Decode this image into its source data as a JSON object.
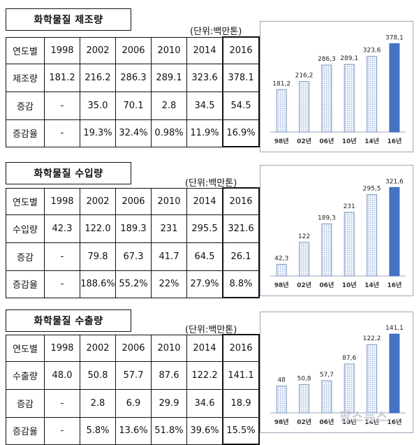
{
  "sections": [
    {
      "title": "화학물질 제조량",
      "unit": "(단위:백만톤)",
      "table": {
        "header": [
          "연도별",
          "1998",
          "2002",
          "2006",
          "2010",
          "2014",
          "2016"
        ],
        "rows": [
          [
            "제조량",
            "181.2",
            "216.2",
            "286.3",
            "289.1",
            "323.6",
            "378.1"
          ],
          [
            "증감",
            "-",
            "35.0",
            "70.1",
            "2.8",
            "34.5",
            "54.5"
          ],
          [
            "증감율",
            "-",
            "19.3%",
            "32.4%",
            "0.98%",
            "11.9%",
            "16.9%"
          ]
        ]
      }
    },
    {
      "title": "화학물질 수입량",
      "unit": "(단위:백만톤)",
      "table": {
        "header": [
          "연도별",
          "1998",
          "2002",
          "2006",
          "2010",
          "2014",
          "2016"
        ],
        "rows": [
          [
            "수입량",
            "42.3",
            "122.0",
            "189.3",
            "231",
            "295.5",
            "321.6"
          ],
          [
            "증감",
            "-",
            "79.8",
            "67.3",
            "41.7",
            "64.5",
            "26.1"
          ],
          [
            "증감율",
            "-",
            "188.6%",
            "55.2%",
            "22%",
            "27.9%",
            "8.8%"
          ]
        ]
      }
    },
    {
      "title": "화학물질 수출량",
      "unit": "(단위:백만톤)",
      "table": {
        "header": [
          "연도별",
          "1998",
          "2002",
          "2006",
          "2010",
          "2014",
          "2016"
        ],
        "rows": [
          [
            "수출량",
            "48.0",
            "50.8",
            "57.7",
            "87.6",
            "122.2",
            "141.1"
          ],
          [
            "증감",
            "-",
            "2.8",
            "6.9",
            "29.9",
            "34.6",
            "18.9"
          ],
          [
            "증감율",
            "-",
            "5.8%",
            "13.6%",
            "51.8%",
            "39.6%",
            "15.5%"
          ]
        ]
      }
    }
  ],
  "chart_data": [
    {
      "type": "bar",
      "title": "",
      "categories": [
        "98년",
        "02년",
        "06년",
        "10년",
        "14년",
        "16년"
      ],
      "values": [
        181.2,
        216.2,
        286.3,
        289.1,
        323.6,
        378.1
      ],
      "value_labels": [
        "181,2",
        "216,2",
        "286,3",
        "289,1",
        "323,6",
        "378,1"
      ],
      "ylim": [
        0,
        400
      ],
      "highlight_index": 5,
      "colors": {
        "bar_fill": "#eef3fb",
        "bar_hatch": "#9fb6d8",
        "bar_stroke": "#7d96bf",
        "highlight": "#4472c4",
        "axis": "#9aa6b8"
      }
    },
    {
      "type": "bar",
      "title": "",
      "categories": [
        "98년",
        "02년",
        "06년",
        "10년",
        "14년",
        "16년"
      ],
      "values": [
        42.3,
        122,
        189.3,
        231,
        295.5,
        321.6
      ],
      "value_labels": [
        "42,3",
        "122",
        "189,3",
        "231",
        "295,5",
        "321,6"
      ],
      "ylim": [
        0,
        340
      ],
      "highlight_index": 5,
      "colors": {
        "bar_fill": "#eef3fb",
        "bar_hatch": "#9fb6d8",
        "bar_stroke": "#7d96bf",
        "highlight": "#4472c4",
        "axis": "#9aa6b8"
      }
    },
    {
      "type": "bar",
      "title": "",
      "categories": [
        "98년",
        "02년",
        "06년",
        "10년",
        "14년",
        "16년"
      ],
      "values": [
        48,
        50.8,
        57.7,
        87.6,
        122.2,
        141.1
      ],
      "value_labels": [
        "48",
        "50,8",
        "57,7",
        "87,6",
        "122,2",
        "141,1"
      ],
      "ylim": [
        0,
        150
      ],
      "highlight_index": 5,
      "colors": {
        "bar_fill": "#eef3fb",
        "bar_hatch": "#9fb6d8",
        "bar_stroke": "#7d96bf",
        "highlight": "#4472c4",
        "axis": "#9aa6b8"
      }
    }
  ],
  "watermark": "팜스뉴스"
}
